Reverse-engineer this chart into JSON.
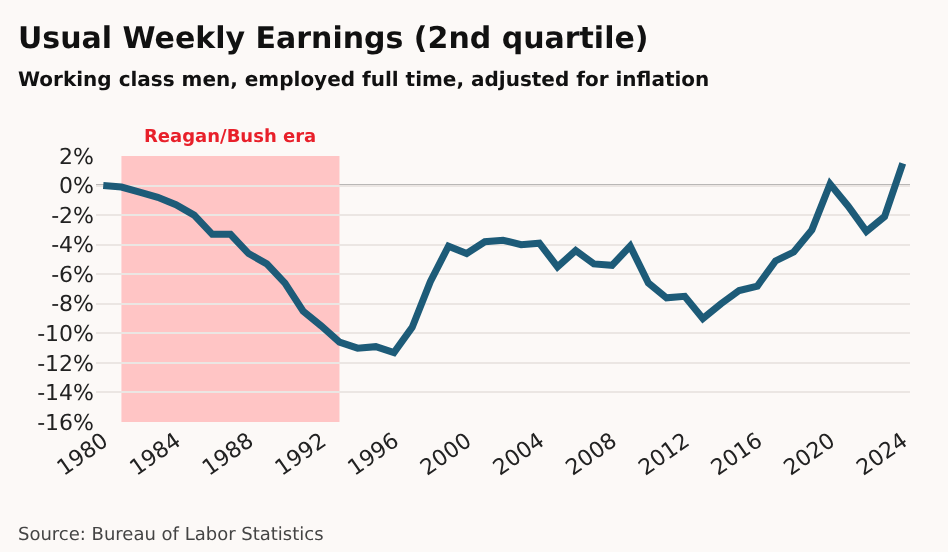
{
  "chart_data": {
    "type": "line",
    "title": "Usual Weekly Earnings (2nd quartile)",
    "subtitle": "Working class men, employed full time, adjusted for inflation",
    "x": [
      1980,
      1981,
      1982,
      1983,
      1984,
      1985,
      1986,
      1987,
      1988,
      1989,
      1990,
      1991,
      1992,
      1993,
      1994,
      1995,
      1996,
      1997,
      1998,
      1999,
      2000,
      2001,
      2002,
      2003,
      2004,
      2005,
      2006,
      2007,
      2008,
      2009,
      2010,
      2011,
      2012,
      2013,
      2014,
      2015,
      2016,
      2017,
      2018,
      2019,
      2020,
      2021,
      2022,
      2023,
      2024
    ],
    "series": [
      {
        "color": "#1d5b78",
        "values": [
          0,
          -0.1,
          -0.45,
          -0.8,
          -1.3,
          -2.0,
          -3.3,
          -3.3,
          -4.6,
          -5.3,
          -6.6,
          -8.5,
          -9.5,
          -10.6,
          -11.0,
          -10.9,
          -11.3,
          -9.6,
          -6.5,
          -4.1,
          -4.6,
          -3.8,
          -3.7,
          -4.0,
          -3.9,
          -5.5,
          -4.4,
          -5.3,
          -5.4,
          -4.1,
          -6.6,
          -7.6,
          -7.5,
          -9.0,
          -8.0,
          -7.1,
          -6.8,
          -5.1,
          -4.5,
          -3.0,
          0.1,
          -1.4,
          -3.1,
          -2.1,
          1.5
        ]
      }
    ],
    "xlim": [
      1979.6,
      2024.4
    ],
    "xticks": [
      1980,
      1984,
      1988,
      1992,
      1996,
      2000,
      2004,
      2008,
      2012,
      2016,
      2020,
      2024
    ],
    "ylim": [
      -16,
      2
    ],
    "yticks": [
      {
        "value": 2,
        "label": "2%"
      },
      {
        "value": 0,
        "label": "0%"
      },
      {
        "value": -2,
        "label": "-2%"
      },
      {
        "value": -4,
        "label": "-4%"
      },
      {
        "value": -6,
        "label": "-6%"
      },
      {
        "value": -8,
        "label": "-8%"
      },
      {
        "value": -10,
        "label": "-10%"
      },
      {
        "value": -12,
        "label": "-12%"
      },
      {
        "value": -14,
        "label": "-14%"
      },
      {
        "value": -16,
        "label": "-16%"
      }
    ],
    "grid": "y",
    "legend": false,
    "marker": "none",
    "line_style": "solid",
    "bands": [
      {
        "axis": "x",
        "from": 1981,
        "to": 1993,
        "label": "Reagan/Bush era",
        "color": "#ffc5c5"
      }
    ],
    "ref_lines": [
      {
        "axis": "y",
        "value": 0,
        "color": "#777777"
      }
    ],
    "annotations": [
      "Source: Bureau of Labor Statistics"
    ]
  }
}
